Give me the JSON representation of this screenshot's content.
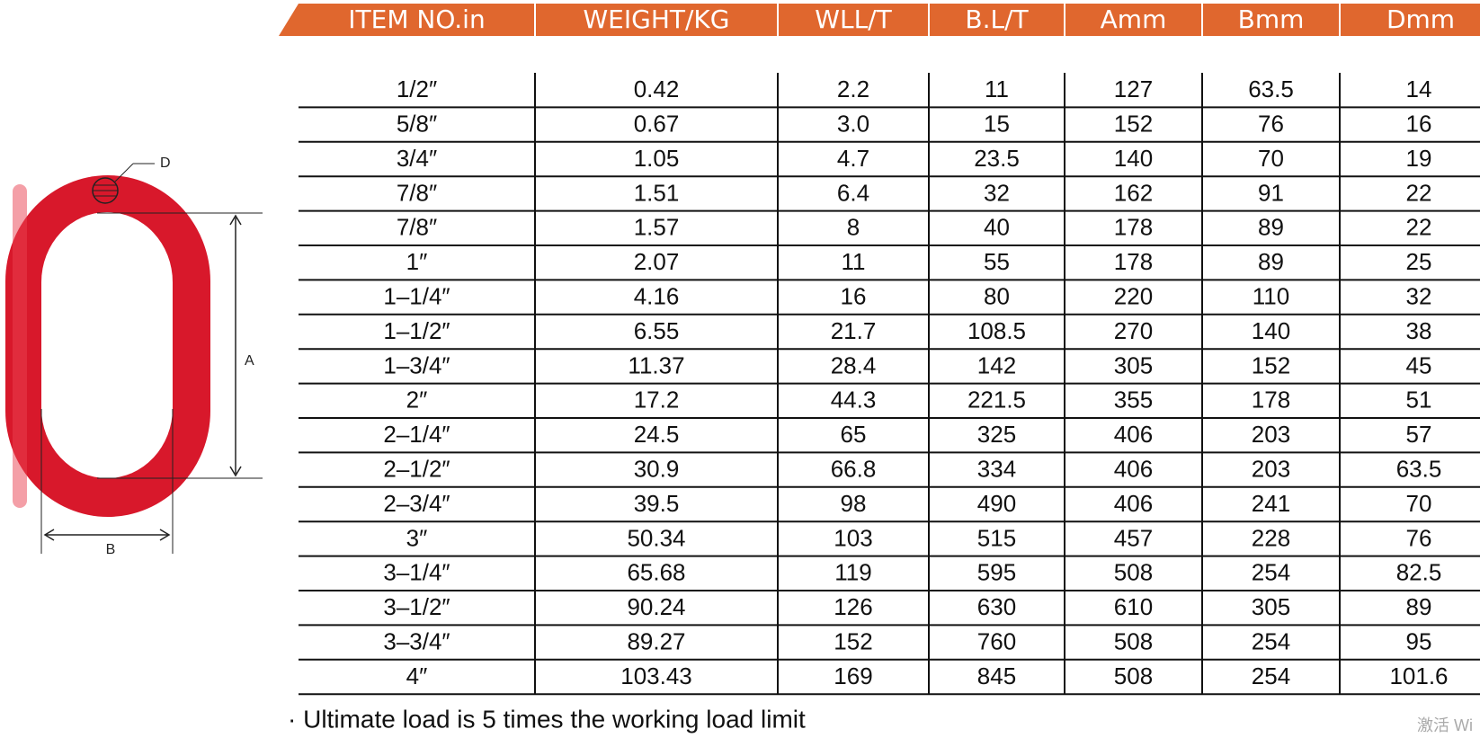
{
  "table": {
    "columns": [
      "ITEM NO.in",
      "WEIGHT/KG",
      "WLL/T",
      "B.L/T",
      "Amm",
      "Bmm",
      "Dmm"
    ],
    "rows": [
      [
        "1/2″",
        "0.42",
        "2.2",
        "11",
        "127",
        "63.5",
        "14"
      ],
      [
        "5/8″",
        "0.67",
        "3.0",
        "15",
        "152",
        "76",
        "16"
      ],
      [
        "3/4″",
        "1.05",
        "4.7",
        "23.5",
        "140",
        "70",
        "19"
      ],
      [
        "7/8″",
        "1.51",
        "6.4",
        "32",
        "162",
        "91",
        "22"
      ],
      [
        "7/8″",
        "1.57",
        "8",
        "40",
        "178",
        "89",
        "22"
      ],
      [
        "1″",
        "2.07",
        "11",
        "55",
        "178",
        "89",
        "25"
      ],
      [
        "1–1/4″",
        "4.16",
        "16",
        "80",
        "220",
        "110",
        "32"
      ],
      [
        "1–1/2″",
        "6.55",
        "21.7",
        "108.5",
        "270",
        "140",
        "38"
      ],
      [
        "1–3/4″",
        "11.37",
        "28.4",
        "142",
        "305",
        "152",
        "45"
      ],
      [
        "2″",
        "17.2",
        "44.3",
        "221.5",
        "355",
        "178",
        "51"
      ],
      [
        "2–1/4″",
        "24.5",
        "65",
        "325",
        "406",
        "203",
        "57"
      ],
      [
        "2–1/2″",
        "30.9",
        "66.8",
        "334",
        "406",
        "203",
        "63.5"
      ],
      [
        "2–3/4″",
        "39.5",
        "98",
        "490",
        "406",
        "241",
        "70"
      ],
      [
        "3″",
        "50.34",
        "103",
        "515",
        "457",
        "228",
        "76"
      ],
      [
        "3–1/4″",
        "65.68",
        "119",
        "595",
        "508",
        "254",
        "82.5"
      ],
      [
        "3–1/2″",
        "90.24",
        "126",
        "630",
        "610",
        "305",
        "89"
      ],
      [
        "3–3/4″",
        "89.27",
        "152",
        "760",
        "508",
        "254",
        "95"
      ],
      [
        "4″",
        "103.43",
        "169",
        "845",
        "508",
        "254",
        "101.6"
      ]
    ]
  },
  "note": "· Ultimate load is 5 times the working load limit",
  "diagram": {
    "label_d": "D",
    "label_a": "A",
    "label_b": "B"
  },
  "watermark": "激活 Wi"
}
